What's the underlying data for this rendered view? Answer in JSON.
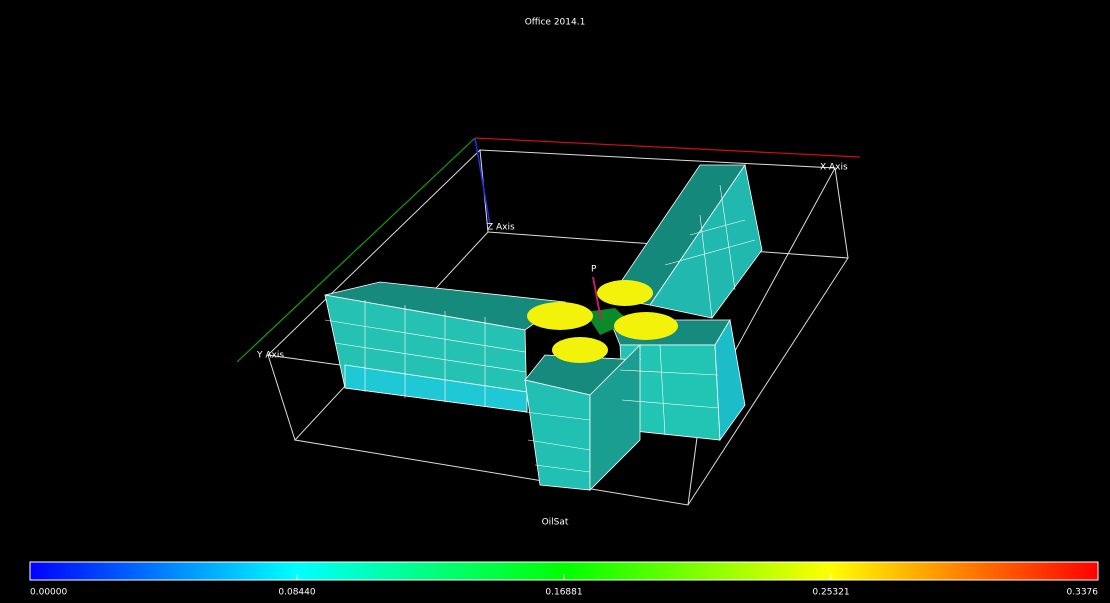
{
  "title": "Office 2014.1",
  "axes": {
    "x": "X Axis",
    "y": "Y Axis",
    "z": "Z Axis"
  },
  "well": "P",
  "colorbar": {
    "label": "OilSat",
    "ticks": [
      "0.00000",
      "0.08440",
      "0.16881",
      "0.25321",
      "0.3376"
    ]
  }
}
